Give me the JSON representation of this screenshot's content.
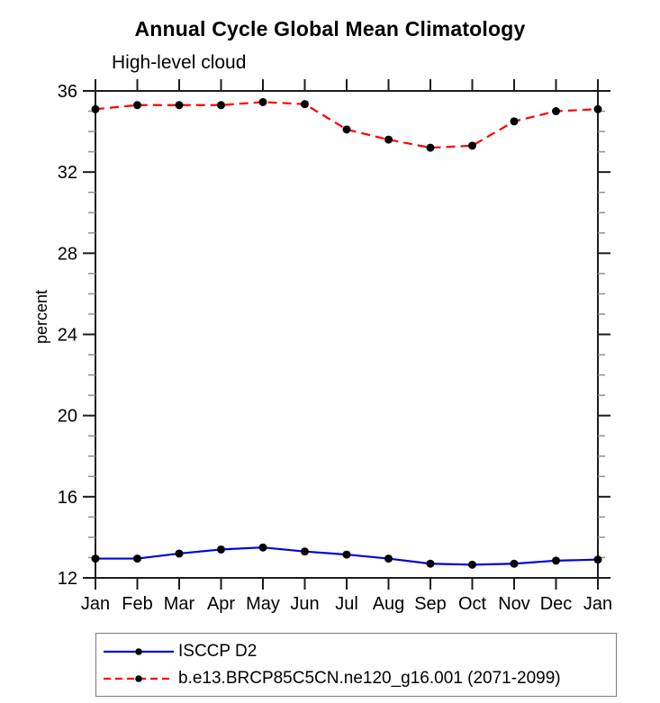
{
  "title": "Annual Cycle Global Mean Climatology",
  "subtitle": "High-level cloud",
  "chart_data": {
    "type": "line",
    "x_categories": [
      "Jan",
      "Feb",
      "Mar",
      "Apr",
      "May",
      "Jun",
      "Jul",
      "Aug",
      "Sep",
      "Oct",
      "Nov",
      "Dec",
      "Jan"
    ],
    "series": [
      {
        "name": "ISCCP D2",
        "color": "#0000e0",
        "style": "solid",
        "marker": "filled-black-circle",
        "values": [
          12.95,
          12.95,
          13.2,
          13.4,
          13.5,
          13.3,
          13.15,
          12.95,
          12.7,
          12.65,
          12.7,
          12.85,
          12.9
        ]
      },
      {
        "name": "b.e13.BRCP85C5CN.ne120_g16.001 (2071-2099)",
        "color": "#ff0000",
        "style": "dashed",
        "marker": "filled-black-circle",
        "values": [
          35.1,
          35.3,
          35.3,
          35.3,
          35.45,
          35.35,
          34.1,
          33.6,
          33.2,
          33.3,
          34.5,
          35.0,
          35.1
        ]
      }
    ],
    "xlabel": "",
    "ylabel": "percent",
    "ylim": [
      12,
      36
    ],
    "y_major_step": 4,
    "y_minor_step": 1,
    "y_tick_labels": [
      "12",
      "16",
      "20",
      "24",
      "28",
      "32",
      "36"
    ],
    "grid": false,
    "legend_position": "bottom",
    "axis_color": "#1c1c1c",
    "minor_tick_color": "#8f8f8f",
    "marker_color": "#000000"
  }
}
